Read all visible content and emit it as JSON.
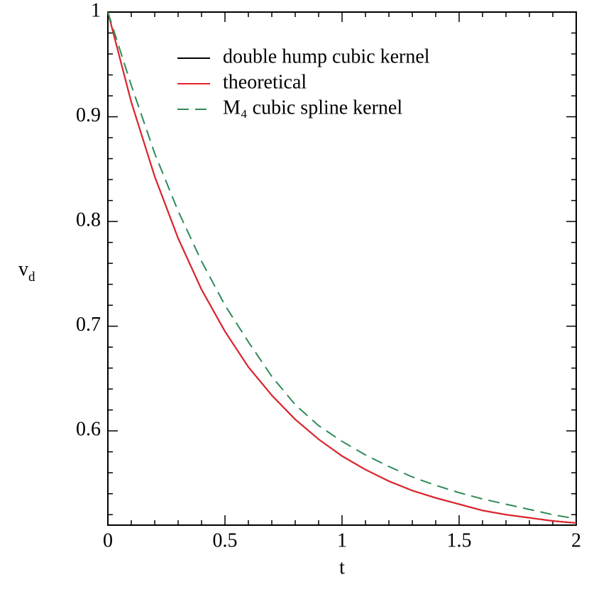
{
  "chart_data": {
    "type": "line",
    "xlabel": "t",
    "ylabel": "v",
    "ylabel_subscript": "d",
    "x": [
      0,
      0.1,
      0.2,
      0.3,
      0.4,
      0.5,
      0.6,
      0.7,
      0.8,
      0.9,
      1.0,
      1.1,
      1.2,
      1.3,
      1.4,
      1.5,
      1.6,
      1.7,
      1.8,
      1.9,
      2.0
    ],
    "series": [
      {
        "name": "double hump cubic kernel",
        "color": "#000000",
        "dash": false,
        "values": [
          1,
          0.914,
          0.843,
          0.784,
          0.735,
          0.695,
          0.661,
          0.634,
          0.611,
          0.592,
          0.576,
          0.563,
          0.552,
          0.543,
          0.536,
          0.53,
          0.524,
          0.52,
          0.517,
          0.514,
          0.512
        ]
      },
      {
        "name": "theoretical",
        "color": "#e8222a",
        "dash": false,
        "values": [
          1,
          0.914,
          0.843,
          0.784,
          0.735,
          0.695,
          0.661,
          0.634,
          0.611,
          0.592,
          0.576,
          0.563,
          0.552,
          0.543,
          0.536,
          0.53,
          0.524,
          0.52,
          0.517,
          0.514,
          0.512
        ]
      },
      {
        "name": "M₄ cubic spline kernel",
        "color": "#2e8b57",
        "dash": true,
        "values": [
          1,
          0.93,
          0.865,
          0.81,
          0.762,
          0.72,
          0.685,
          0.652,
          0.625,
          0.605,
          0.59,
          0.577,
          0.566,
          0.556,
          0.548,
          0.541,
          0.535,
          0.53,
          0.525,
          0.52,
          0.516
        ]
      }
    ],
    "xlim": [
      0,
      2
    ],
    "ylim": [
      0.51,
      1
    ],
    "xticks": [
      0,
      0.5,
      1,
      1.5,
      2
    ],
    "yticks": [
      0.6,
      0.7,
      0.8,
      0.9,
      1
    ],
    "xminorticks": [
      0.1,
      0.2,
      0.3,
      0.4,
      0.6,
      0.7,
      0.8,
      0.9,
      1.1,
      1.2,
      1.3,
      1.4,
      1.6,
      1.7,
      1.8,
      1.9
    ],
    "yminorticks": [
      0.52,
      0.54,
      0.56,
      0.58,
      0.62,
      0.64,
      0.66,
      0.68,
      0.72,
      0.74,
      0.76,
      0.78,
      0.82,
      0.84,
      0.86,
      0.88,
      0.92,
      0.94,
      0.96,
      0.98
    ]
  }
}
